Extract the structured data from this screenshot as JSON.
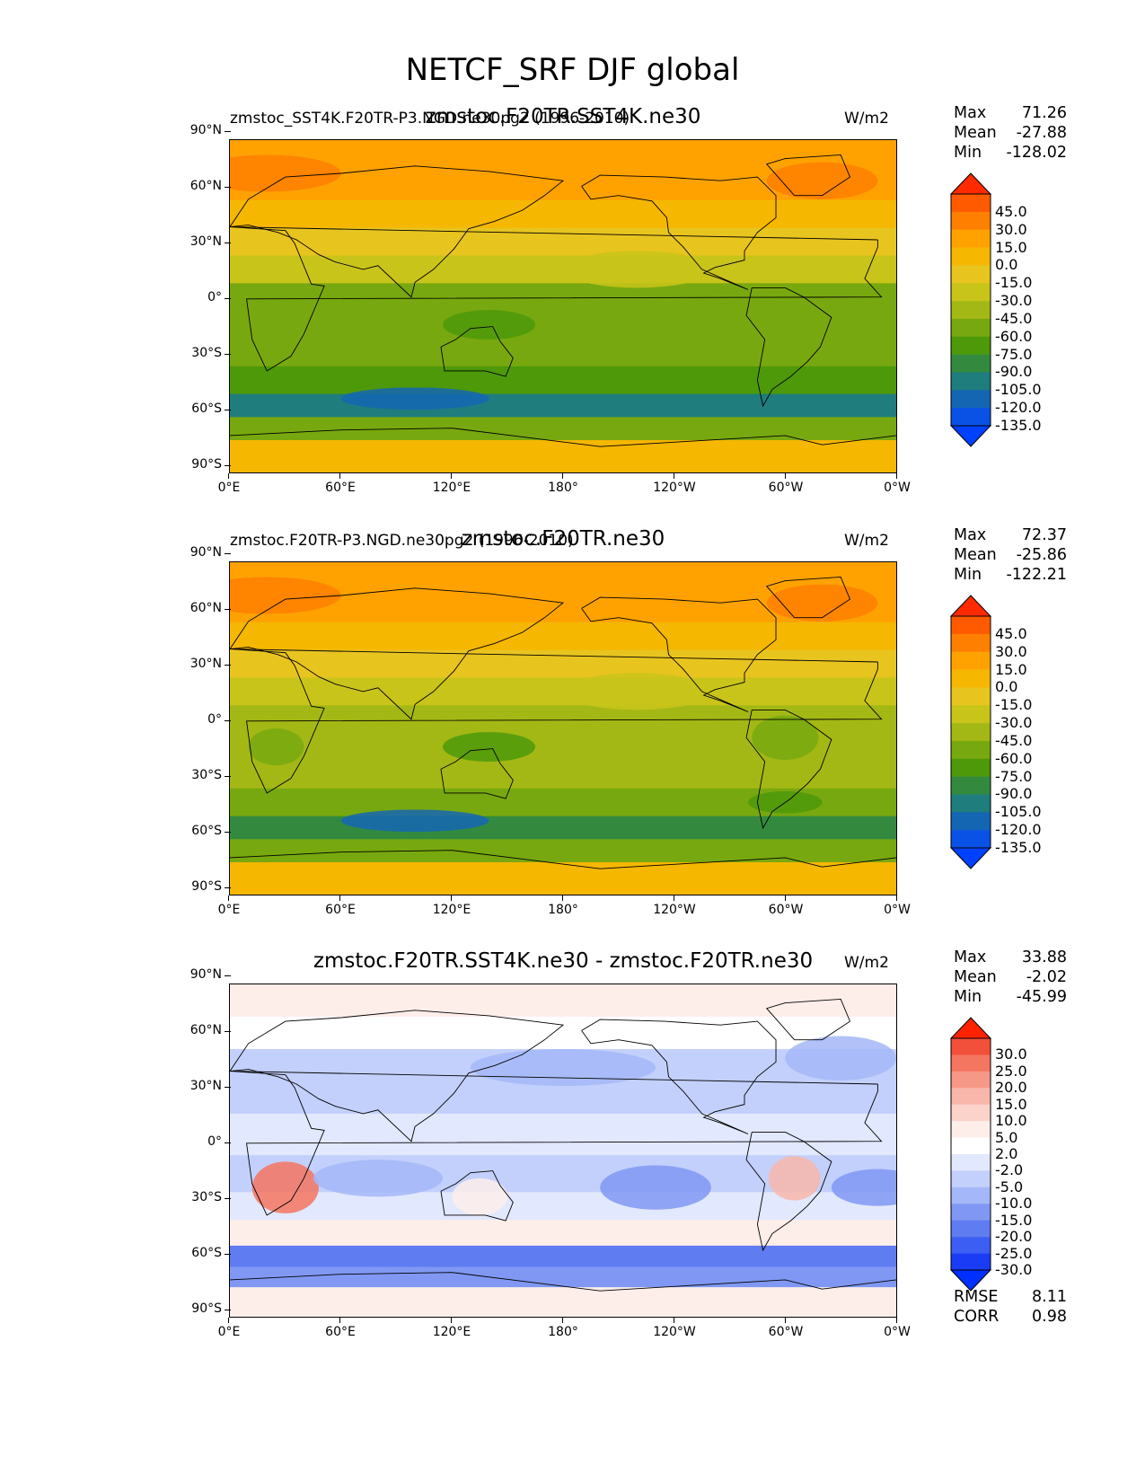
{
  "figure": {
    "title": "NETCF_SRF DJF global"
  },
  "axes": {
    "yticks": [
      "90°N",
      "60°N",
      "30°N",
      "0°",
      "30°S",
      "60°S",
      "90°S"
    ],
    "xticks": [
      "0°E",
      "60°E",
      "120°E",
      "180°",
      "120°W",
      "60°W",
      "0°W"
    ]
  },
  "panels": [
    {
      "left_title": "zmstoc_SST4K.F20TR-P3.NGD.ne30pg2 (1996-2010)",
      "center_title": "zmstoc.F20TR.SST4K.ne30",
      "units": "W/m2",
      "stats": {
        "max_label": "Max",
        "max": "71.26",
        "mean_label": "Mean",
        "mean": "-27.88",
        "min_label": "Min",
        "min": "-128.02"
      },
      "colorbar": {
        "labels": [
          "45.0",
          "30.0",
          "15.0",
          "0.0",
          "-15.0",
          "-30.0",
          "-45.0",
          "-60.0",
          "-75.0",
          "-90.0",
          "-105.0",
          "-120.0",
          "-135.0"
        ],
        "colors": [
          "#ff2a00",
          "#ff5a00",
          "#ff7f00",
          "#ffa200",
          "#f5b700",
          "#e8c41f",
          "#c9c41a",
          "#a3b814",
          "#78a80f",
          "#4d990a",
          "#338a3f",
          "#1f7d7d",
          "#1466b3",
          "#0a52e6",
          "#0040ff"
        ]
      }
    },
    {
      "left_title": "zmstoc.F20TR-P3.NGD.ne30pg2 (1996-2010)",
      "center_title": "zmstoc.F20TR.ne30",
      "units": "W/m2",
      "stats": {
        "max_label": "Max",
        "max": "72.37",
        "mean_label": "Mean",
        "mean": "-25.86",
        "min_label": "Min",
        "min": "-122.21"
      },
      "colorbar": {
        "labels": [
          "45.0",
          "30.0",
          "15.0",
          "0.0",
          "-15.0",
          "-30.0",
          "-45.0",
          "-60.0",
          "-75.0",
          "-90.0",
          "-105.0",
          "-120.0",
          "-135.0"
        ],
        "colors": [
          "#ff2a00",
          "#ff5a00",
          "#ff7f00",
          "#ffa200",
          "#f5b700",
          "#e8c41f",
          "#c9c41a",
          "#a3b814",
          "#78a80f",
          "#4d990a",
          "#338a3f",
          "#1f7d7d",
          "#1466b3",
          "#0a52e6",
          "#0040ff"
        ]
      }
    },
    {
      "left_title": "",
      "center_title": "zmstoc.F20TR.SST4K.ne30 - zmstoc.F20TR.ne30",
      "units": "W/m2",
      "stats": {
        "max_label": "Max",
        "max": "33.88",
        "mean_label": "Mean",
        "mean": "-2.02",
        "min_label": "Min",
        "min": "-45.99"
      },
      "metrics": {
        "rmse_label": "RMSE",
        "rmse": "8.11",
        "corr_label": "CORR",
        "corr": "0.98"
      },
      "colorbar": {
        "labels": [
          "30.0",
          "25.0",
          "20.0",
          "15.0",
          "10.0",
          "5.0",
          "2.0",
          "-2.0",
          "-5.0",
          "-10.0",
          "-15.0",
          "-20.0",
          "-25.0",
          "-30.0"
        ],
        "colors": [
          "#ff2200",
          "#f2503a",
          "#f47560",
          "#f69887",
          "#f8b7aa",
          "#fbd3cb",
          "#fdeeea",
          "#ffffff",
          "#e2e8fd",
          "#c3d0fb",
          "#a4b7f8",
          "#8098f3",
          "#5f7cf0",
          "#3d5ef2",
          "#1a3cf5",
          "#0030ff"
        ]
      }
    }
  ],
  "chart_data": [
    {
      "type": "heatmap",
      "title": "zmstoc.F20TR.SST4K.ne30",
      "units": "W/m2",
      "x_range": [
        0,
        360
      ],
      "y_range": [
        -90,
        90
      ],
      "levels": [
        -135,
        -120,
        -105,
        -90,
        -75,
        -60,
        -45,
        -30,
        -15,
        0,
        15,
        30,
        45
      ],
      "stats": {
        "max": 71.26,
        "mean": -27.88,
        "min": -128.02
      },
      "zonal_mean_profile": [
        {
          "lat": 80,
          "value": 25
        },
        {
          "lat": 65,
          "value": 15
        },
        {
          "lat": 50,
          "value": 0
        },
        {
          "lat": 35,
          "value": -15
        },
        {
          "lat": 20,
          "value": -30
        },
        {
          "lat": 5,
          "value": -50
        },
        {
          "lat": -10,
          "value": -50
        },
        {
          "lat": -25,
          "value": -60
        },
        {
          "lat": -40,
          "value": -75
        },
        {
          "lat": -55,
          "value": -100
        },
        {
          "lat": -65,
          "value": -60
        },
        {
          "lat": -80,
          "value": 0
        }
      ]
    },
    {
      "type": "heatmap",
      "title": "zmstoc.F20TR.ne30",
      "units": "W/m2",
      "x_range": [
        0,
        360
      ],
      "y_range": [
        -90,
        90
      ],
      "levels": [
        -135,
        -120,
        -105,
        -90,
        -75,
        -60,
        -45,
        -30,
        -15,
        0,
        15,
        30,
        45
      ],
      "stats": {
        "max": 72.37,
        "mean": -25.86,
        "min": -122.21
      },
      "zonal_mean_profile": [
        {
          "lat": 80,
          "value": 25
        },
        {
          "lat": 65,
          "value": 15
        },
        {
          "lat": 50,
          "value": 5
        },
        {
          "lat": 35,
          "value": -15
        },
        {
          "lat": 20,
          "value": -25
        },
        {
          "lat": 5,
          "value": -40
        },
        {
          "lat": -10,
          "value": -40
        },
        {
          "lat": -25,
          "value": -45
        },
        {
          "lat": -40,
          "value": -60
        },
        {
          "lat": -55,
          "value": -85
        },
        {
          "lat": -65,
          "value": -50
        },
        {
          "lat": -80,
          "value": 0
        }
      ]
    },
    {
      "type": "heatmap",
      "title": "zmstoc.F20TR.SST4K.ne30 - zmstoc.F20TR.ne30",
      "units": "W/m2",
      "x_range": [
        0,
        360
      ],
      "y_range": [
        -90,
        90
      ],
      "levels": [
        -30,
        -25,
        -20,
        -15,
        -10,
        -5,
        -2,
        2,
        5,
        10,
        15,
        20,
        25,
        30
      ],
      "stats": {
        "max": 33.88,
        "mean": -2.02,
        "min": -45.99,
        "rmse": 8.11,
        "corr": 0.98
      },
      "zonal_mean_profile": [
        {
          "lat": 80,
          "value": 5
        },
        {
          "lat": 65,
          "value": 2
        },
        {
          "lat": 45,
          "value": -5
        },
        {
          "lat": 30,
          "value": -3
        },
        {
          "lat": 10,
          "value": -2
        },
        {
          "lat": -15,
          "value": -5
        },
        {
          "lat": -30,
          "value": -2
        },
        {
          "lat": -45,
          "value": 5
        },
        {
          "lat": -58,
          "value": -20
        },
        {
          "lat": -68,
          "value": -15
        },
        {
          "lat": -80,
          "value": 5
        }
      ]
    }
  ]
}
